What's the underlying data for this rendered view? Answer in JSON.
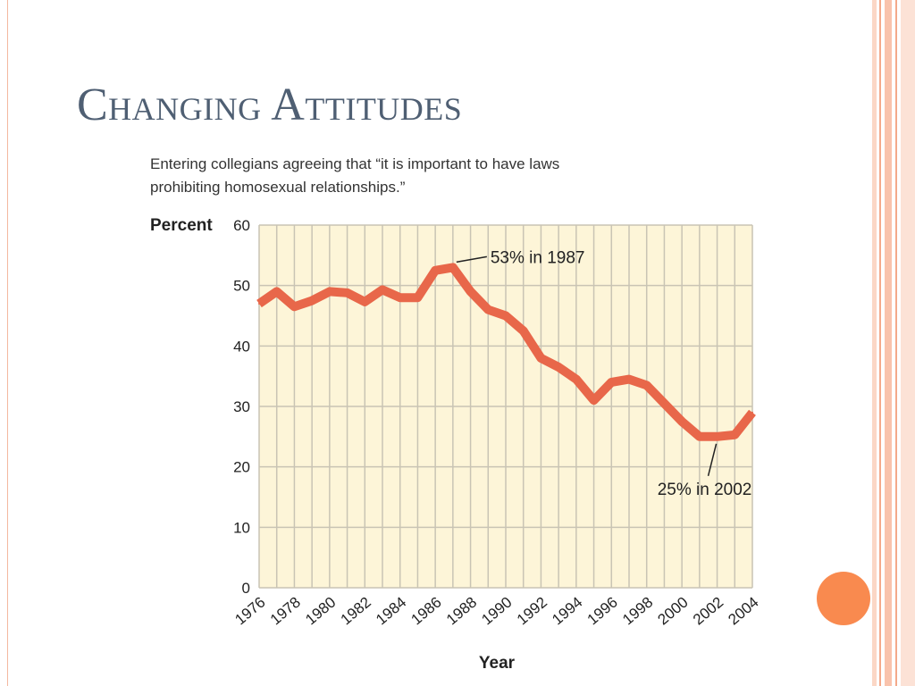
{
  "slide": {
    "title": "Changing Attitudes"
  },
  "colors": {
    "line": "#e8674a",
    "plot_bg": "#fdf5d8",
    "grid": "#c9c4b4",
    "title": "#4f5f73",
    "accent": "#f98a4f"
  },
  "chart_data": {
    "type": "line",
    "title_lines": [
      "Entering collegians agreeing that “it is important to have laws",
      "prohibiting homosexual relationships.”"
    ],
    "ylabel": "Percent",
    "xlabel": "Year",
    "ylim": [
      0,
      60
    ],
    "xlim": [
      1976,
      2004
    ],
    "yticks": [
      "0",
      "10",
      "20",
      "30",
      "40",
      "50",
      "60"
    ],
    "xticks": [
      "1976",
      "1978",
      "1980",
      "1982",
      "1984",
      "1986",
      "1988",
      "1990",
      "1992",
      "1994",
      "1996",
      "1998",
      "2000",
      "2002",
      "2004"
    ],
    "grid": true,
    "series": [
      {
        "x": [
          1976,
          1977,
          1978,
          1979,
          1980,
          1981,
          1982,
          1983,
          1984,
          1985,
          1986,
          1987,
          1988,
          1989,
          1990,
          1991,
          1992,
          1993,
          1994,
          1995,
          1996,
          1997,
          1998,
          1999,
          2000,
          2001,
          2002,
          2003,
          2004
        ],
        "y": [
          47,
          49,
          46.5,
          47.5,
          49,
          48.8,
          47.3,
          49.3,
          48,
          48,
          52.5,
          53,
          49,
          46,
          45,
          42.5,
          38,
          36.5,
          34.5,
          31,
          34,
          34.5,
          33.5,
          30.5,
          27.5,
          25,
          25,
          25.3,
          29
        ]
      }
    ],
    "annotations": [
      {
        "text": "53% in 1987",
        "x": 1987,
        "y": 53
      },
      {
        "text": "25% in 2002",
        "x": 2002,
        "y": 25
      }
    ]
  }
}
